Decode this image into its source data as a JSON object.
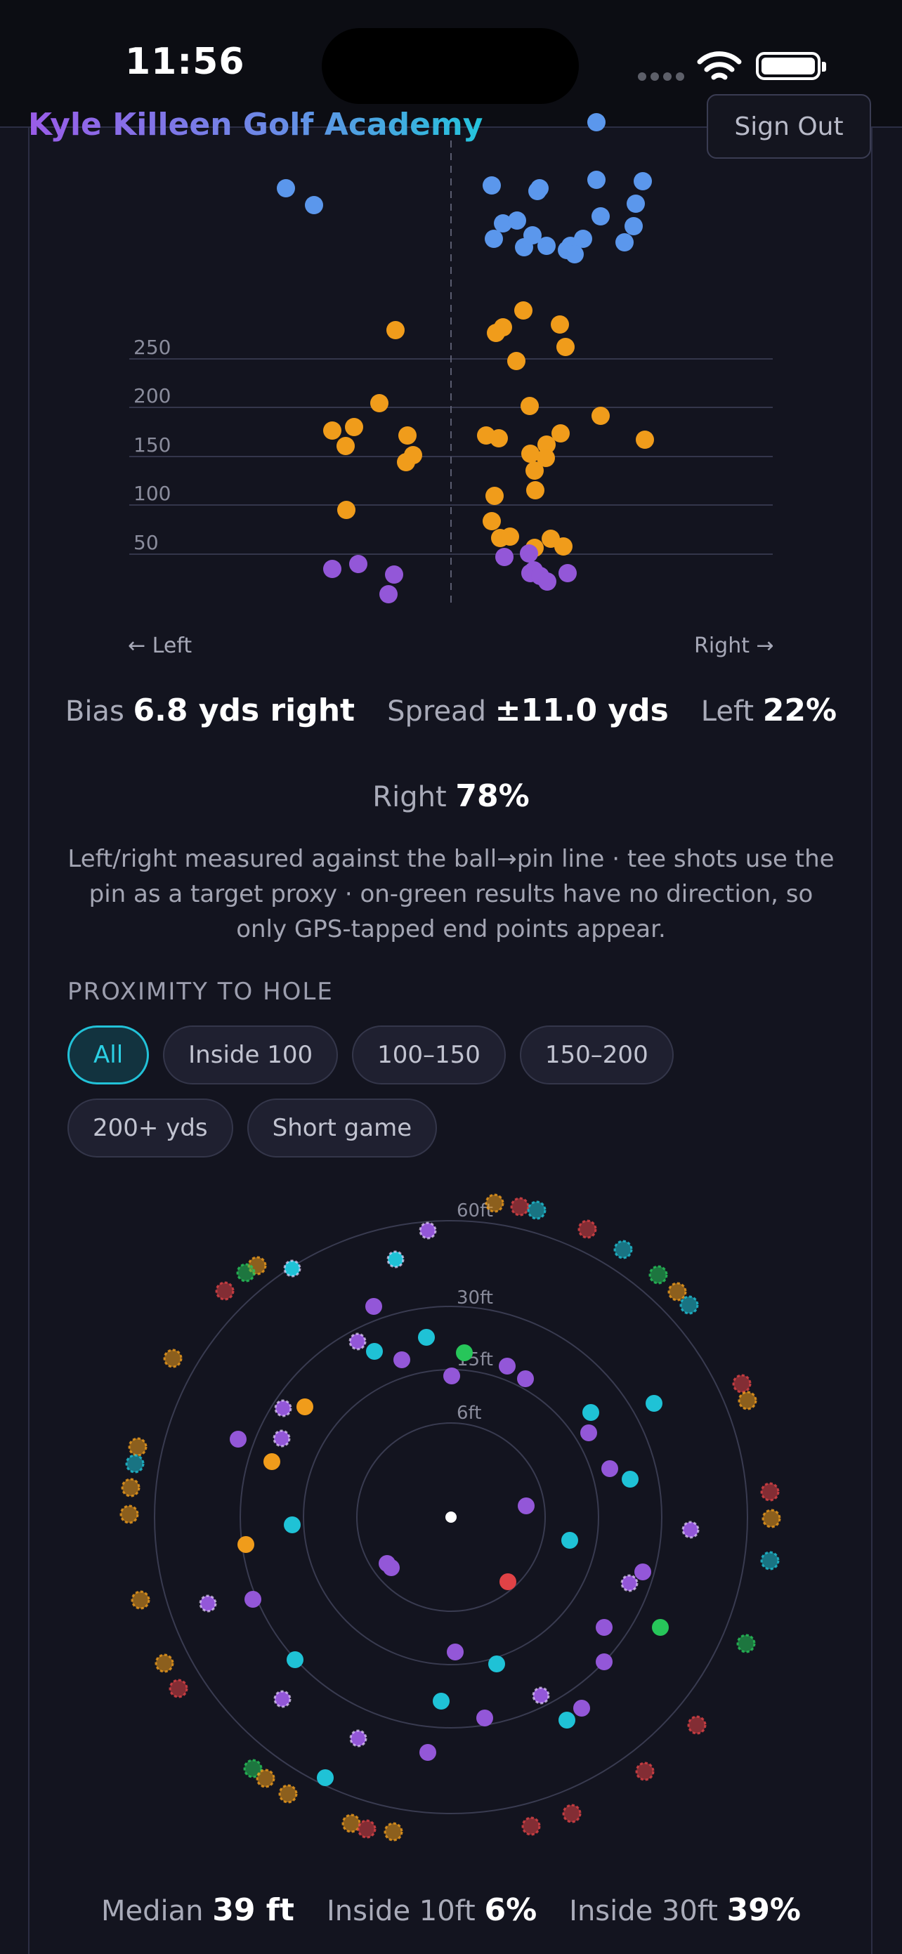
{
  "status": {
    "time": "11:56"
  },
  "header": {
    "brand": "Kyle Killeen Golf Academy",
    "sign_out": "Sign Out"
  },
  "dispersion": {
    "y_labels": [
      "250",
      "200",
      "150",
      "100",
      "50"
    ],
    "left_label": "← Left",
    "right_label": "Right →",
    "stats": {
      "bias_label": "Bias",
      "bias_value": "6.8 yds right",
      "spread_label": "Spread",
      "spread_value": "±11.0 yds",
      "left_label": "Left",
      "left_value": "22%",
      "right_label": "Right",
      "right_value": "78%"
    },
    "note": "Left/right measured against the ball→pin line · tee shots use the pin as a target proxy · on-green results have no direction, so only GPS-tapped end points appear.",
    "colors": {
      "blue": "#5b97ec",
      "orange": "#f09c1b",
      "purple": "#9357d8"
    }
  },
  "proximity": {
    "title": "PROXIMITY TO HOLE",
    "filters": [
      "All",
      "Inside 100",
      "100–150",
      "150–200",
      "200+ yds",
      "Short game"
    ],
    "active_filter": "All",
    "ring_labels": [
      "60ft",
      "30ft",
      "15ft",
      "6ft"
    ],
    "stats": {
      "median_label": "Median",
      "median_value": "39 ft",
      "in10_label": "Inside 10ft",
      "in10_value": "6%",
      "in30_label": "Inside 30ft",
      "in30_value": "39%"
    },
    "colors": {
      "cyan": "#1fc2d6",
      "purple": "#9357d8",
      "orange": "#f09c1b",
      "red": "#e04246",
      "green": "#27c65a"
    }
  }
}
